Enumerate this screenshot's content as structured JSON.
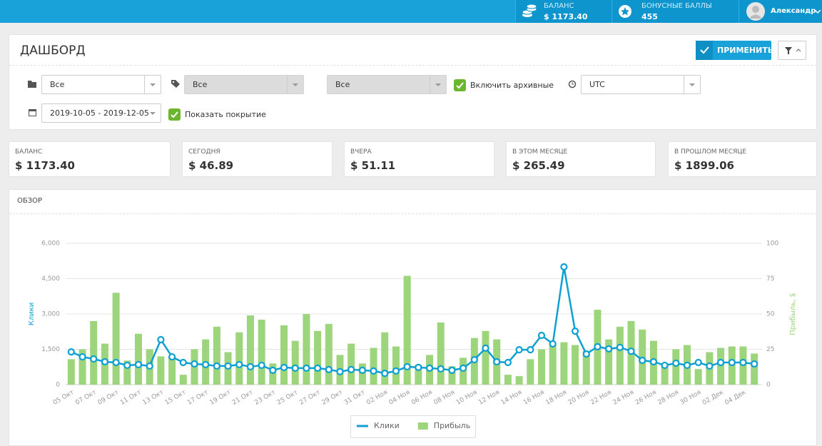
{
  "topbar": {
    "balance_label": "БАЛАНС",
    "balance_value": "$ 1173.40",
    "bonus_label": "БОНУСНЫЕ БАЛЛЫ",
    "bonus_value": "455",
    "user": "Александр"
  },
  "dashboard": {
    "title": "ДАШБОРД",
    "apply": "ПРИМЕНИТЬ",
    "filters": {
      "folder": "Все",
      "tag": "Все",
      "third": "Все",
      "archived": "Включить архивные",
      "timezone": "UTC",
      "date_range": "2019-10-05 - 2019-12-05",
      "coverage": "Показать покрытие"
    }
  },
  "stats": [
    {
      "label": "БАЛАНС",
      "value": "$ 1173.40"
    },
    {
      "label": "СЕГОДНЯ",
      "value": "$ 46.89"
    },
    {
      "label": "ВЧЕРА",
      "value": "$ 51.11"
    },
    {
      "label": "В ЭТОМ МЕСЯЦЕ",
      "value": "$ 265.49"
    },
    {
      "label": "В ПРОШЛОМ МЕСЯЦЕ",
      "value": "$ 1899.06"
    }
  ],
  "overview": {
    "title": "ОБЗОР"
  },
  "chart_data": {
    "type": "combo",
    "categories": [
      "05 Окт",
      null,
      "07 Окт",
      null,
      "09 Окт",
      null,
      "11 Окт",
      null,
      "13 Окт",
      null,
      "15 Окт",
      null,
      "17 Окт",
      null,
      "19 Окт",
      null,
      "21 Окт",
      null,
      "23 Окт",
      null,
      "25 Окт",
      null,
      "27 Окт",
      null,
      "29 Окт",
      null,
      "31 Окт",
      null,
      "02 Ноя",
      null,
      "04 Ноя",
      null,
      "06 Ноя",
      null,
      "08 Ноя",
      null,
      "10 Ноя",
      null,
      "12 Ноя",
      null,
      "14 Ноя",
      null,
      "16 Ноя",
      null,
      "18 Ноя",
      null,
      "20 Ноя",
      null,
      "22 Ноя",
      null,
      "24 Ноя",
      null,
      "26 Ноя",
      null,
      "28 Ноя",
      null,
      "30 Ноя",
      null,
      "02 Дек",
      null,
      "04 Дек",
      null
    ],
    "series": [
      {
        "name": "Клики",
        "type": "line",
        "color": "#0e9fd3",
        "values": [
          1390,
          1180,
          1090,
          970,
          940,
          820,
          850,
          790,
          1910,
          1180,
          940,
          880,
          850,
          790,
          790,
          850,
          760,
          820,
          610,
          730,
          700,
          700,
          700,
          640,
          550,
          640,
          610,
          580,
          480,
          580,
          760,
          730,
          700,
          670,
          610,
          700,
          1060,
          1550,
          970,
          940,
          1480,
          1480,
          2090,
          1730,
          5000,
          2270,
          1300,
          1610,
          1520,
          1580,
          1420,
          1030,
          970,
          820,
          910,
          820,
          940,
          790,
          940,
          940,
          940,
          880
        ]
      },
      {
        "name": "Прибыль",
        "type": "bar",
        "axis": "y2",
        "color": "#9cd57b",
        "values": [
          18,
          25,
          45,
          29,
          65,
          17,
          36,
          25,
          20,
          20,
          7,
          25,
          32,
          41,
          23,
          37,
          49,
          46,
          15,
          42,
          31,
          50,
          38,
          43,
          21,
          29,
          15,
          26,
          37,
          27,
          77,
          14,
          21,
          44,
          13,
          19,
          33,
          38,
          32,
          7,
          6,
          18,
          25,
          29,
          30,
          28,
          24,
          53,
          32,
          41,
          45,
          39,
          31,
          15,
          25,
          28,
          11,
          23,
          26,
          27,
          27,
          22
        ]
      }
    ],
    "y_label": "Клики",
    "y2_label": "Прибыль, $",
    "ylim": [
      0,
      6000
    ],
    "yticks": [
      0,
      {
        "value": 1500,
        "label": "1,500"
      },
      {
        "value": 3000,
        "label": "3,000"
      },
      {
        "value": 4500,
        "label": "4,500"
      },
      {
        "value": 6000,
        "label": "6,000"
      }
    ],
    "y2lim": [
      0,
      100
    ],
    "y2ticks": [
      0,
      25,
      50,
      75,
      100
    ],
    "grid": true,
    "legend": "bottom"
  }
}
